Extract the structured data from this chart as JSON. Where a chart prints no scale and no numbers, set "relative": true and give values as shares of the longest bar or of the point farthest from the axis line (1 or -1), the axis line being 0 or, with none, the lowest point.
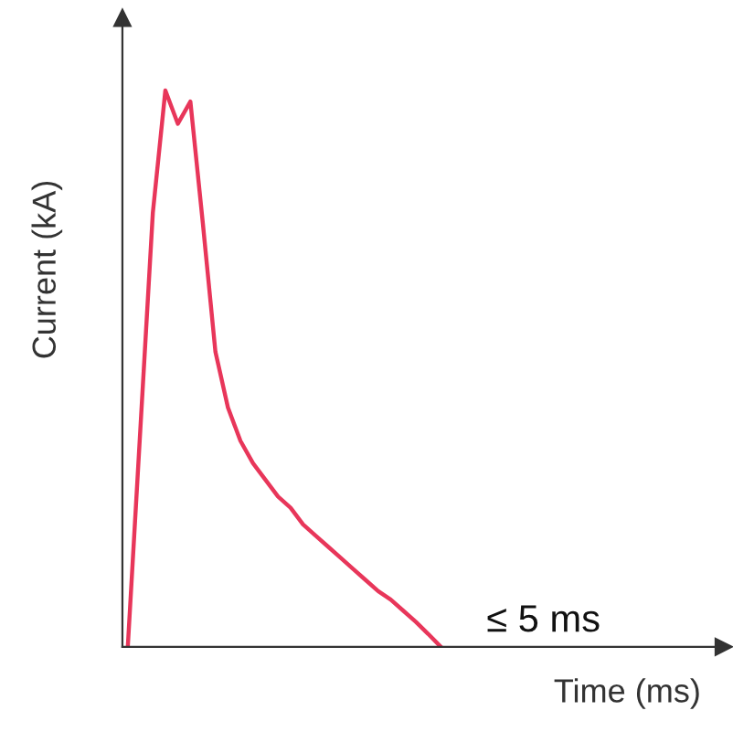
{
  "chart_data": {
    "type": "line",
    "relative": true,
    "xlabel": "Time (ms)",
    "ylabel": "Current (kA)",
    "marker": "none",
    "line_style": "solid",
    "categories": [
      null,
      null,
      null,
      null,
      null,
      null,
      null,
      null,
      null,
      null,
      null,
      null,
      null,
      null,
      null,
      null,
      null,
      null,
      null,
      null,
      null,
      null,
      null,
      null,
      null,
      null
    ],
    "series": [
      {
        "color": "#e8365a",
        "values": [
          0,
          0.39,
          0.78,
          1.0,
          0.94,
          0.98,
          0.76,
          0.53,
          0.43,
          0.37,
          0.33,
          0.3,
          0.27,
          0.25,
          0.22,
          0.2,
          0.18,
          0.16,
          0.14,
          0.12,
          0.1,
          0.085,
          0.065,
          0.045,
          0.023,
          0
        ]
      }
    ],
    "annotations": [
      "≤ 5 ms"
    ]
  }
}
